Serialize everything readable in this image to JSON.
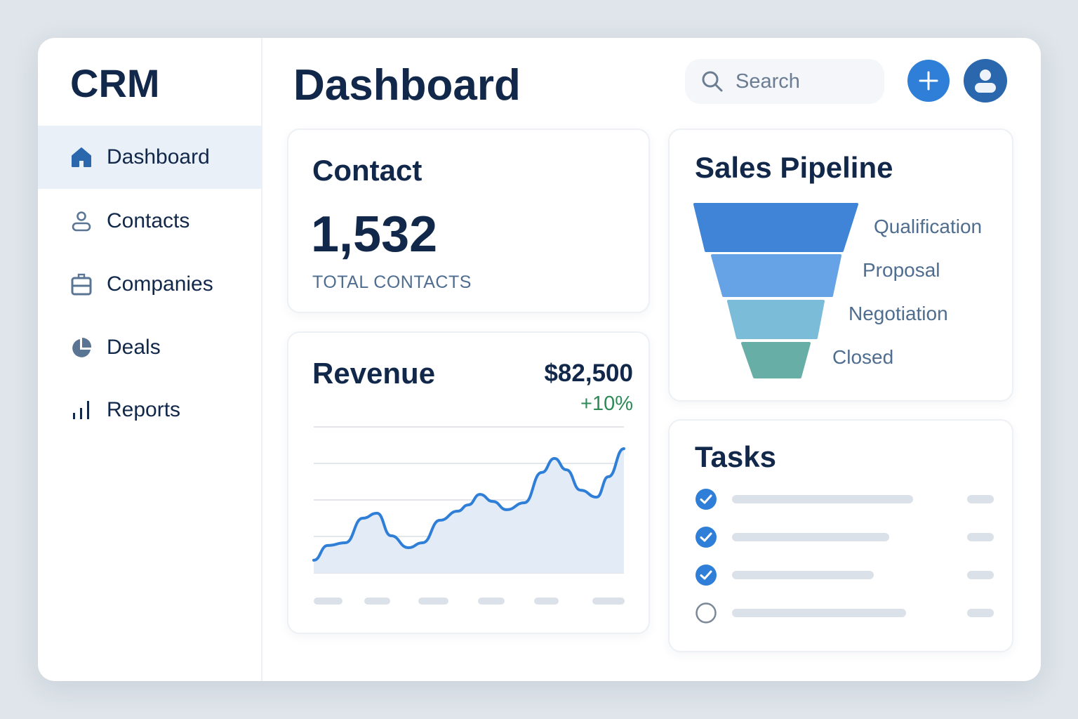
{
  "app": {
    "logo": "CRM",
    "page_title": "Dashboard"
  },
  "sidebar": {
    "items": [
      {
        "label": "Dashboard",
        "icon": "home-icon",
        "active": true
      },
      {
        "label": "Contacts",
        "icon": "user-icon"
      },
      {
        "label": "Companies",
        "icon": "briefcase-icon"
      },
      {
        "label": "Deals",
        "icon": "pie-chart-icon"
      },
      {
        "label": "Reports",
        "icon": "bar-chart-icon"
      }
    ]
  },
  "header": {
    "search_placeholder": "Search",
    "add_icon": "plus-icon",
    "avatar_icon": "user-avatar-icon"
  },
  "contact_card": {
    "title": "Contact",
    "value": "1,532",
    "label": "TOTAL CONTACTS"
  },
  "revenue_card": {
    "title": "Revenue",
    "amount": "$82,500",
    "change": "+10%",
    "change_color": "#2e8a57"
  },
  "pipeline": {
    "title": "Sales Pipeline",
    "stages": [
      {
        "label": "Qualification",
        "color": "#3f84d7"
      },
      {
        "label": "Proposal",
        "color": "#66a3e6"
      },
      {
        "label": "Negotiation",
        "color": "#7bbcd8"
      },
      {
        "label": "Closed",
        "color": "#67aea6"
      }
    ]
  },
  "tasks": {
    "title": "Tasks",
    "items": [
      {
        "done": true
      },
      {
        "done": true
      },
      {
        "done": true
      },
      {
        "done": false
      }
    ]
  },
  "chart_data": {
    "type": "area",
    "title": "Revenue",
    "xlabel": "",
    "ylabel": "",
    "ylim": [
      0,
      100
    ],
    "xlim": [
      0,
      100
    ],
    "grid": true,
    "x": [
      0,
      4.5,
      10.2,
      15.8,
      20.4,
      24.9,
      30.5,
      35.1,
      40.7,
      46.4,
      49.8,
      53.6,
      57.7,
      62.2,
      67.9,
      73.5,
      77.6,
      81.4,
      86,
      91.2,
      95,
      100
    ],
    "y": [
      8.7,
      18.8,
      20.7,
      37.5,
      40.9,
      25.5,
      17.3,
      20.7,
      36.1,
      42.3,
      46.6,
      53.8,
      49,
      43.3,
      48.1,
      68.8,
      78.4,
      70.7,
      56.7,
      51.9,
      65.9,
      85.1
    ],
    "line_color": "#2f7fd8",
    "fill_color": "#e3ebf6"
  }
}
